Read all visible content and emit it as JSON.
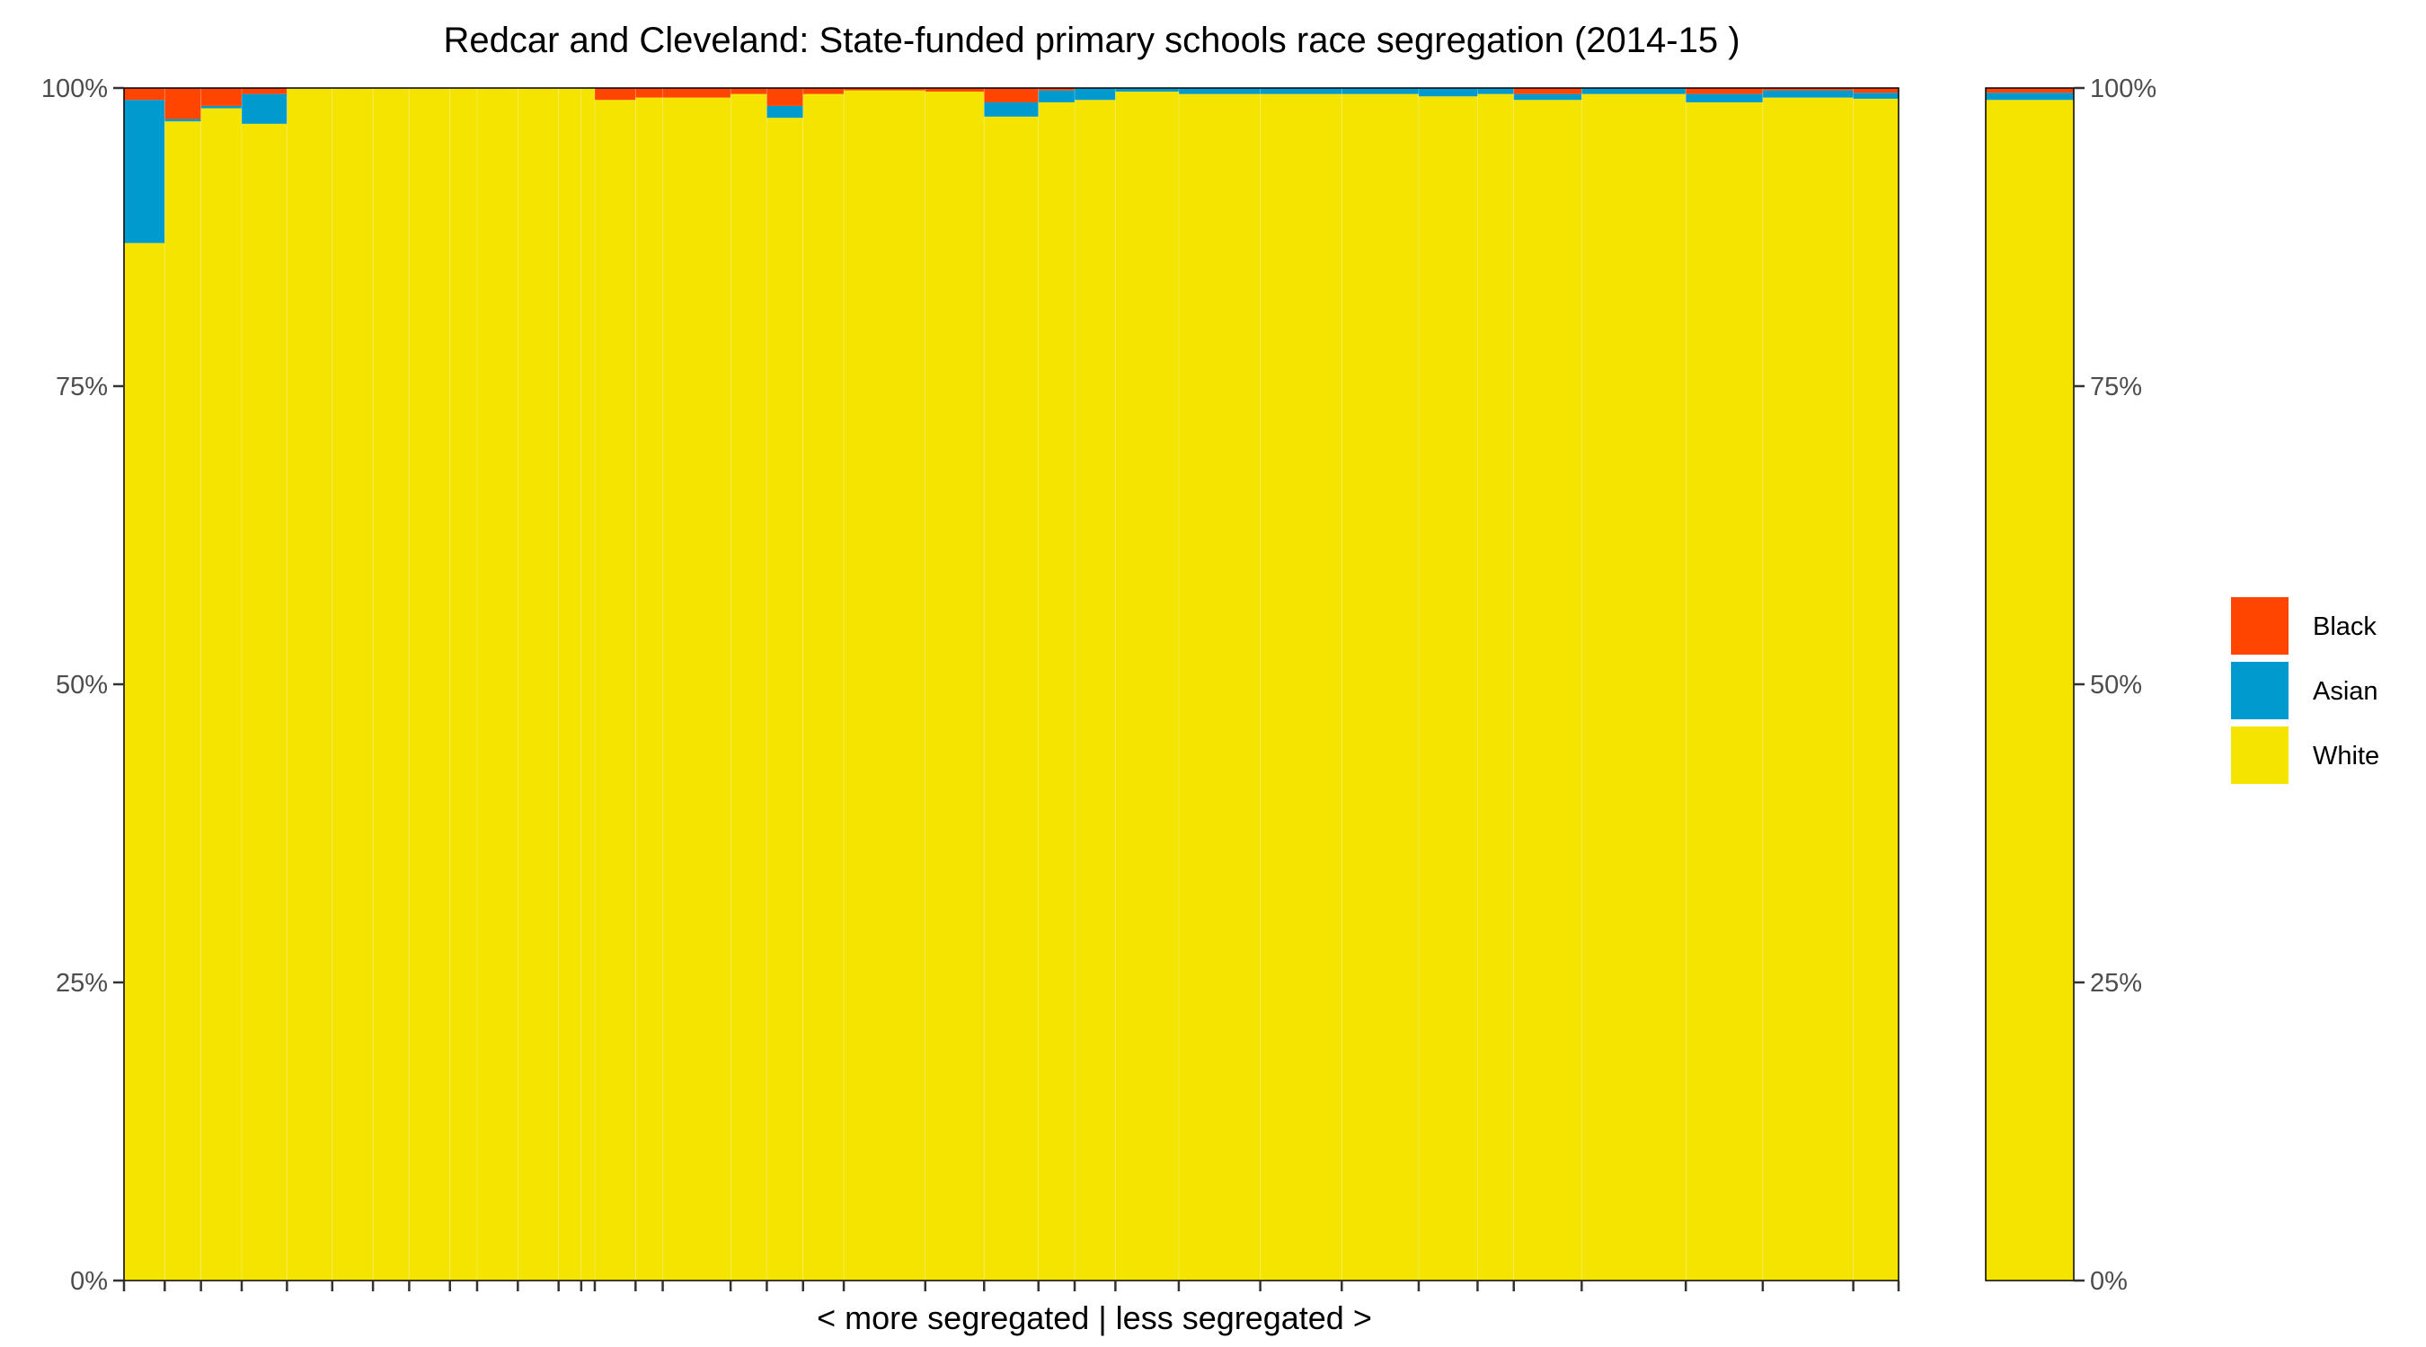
{
  "chart_data": {
    "type": "bar",
    "stacked": true,
    "title": "Redcar and Cleveland: State-funded primary schools race segregation (2014-15 )",
    "xlabel": "< more segregated | less segregated >",
    "ylabel": "",
    "ylim": [
      0,
      100
    ],
    "yticks": [
      "0%",
      "25%",
      "50%",
      "75%",
      "100%"
    ],
    "ytick_values": [
      0,
      25,
      50,
      75,
      100
    ],
    "colors": {
      "Black": "#ff4500",
      "Asian": "#009ace",
      "White": "#f5e300",
      "Other": "#ffffff"
    },
    "legend": {
      "position": "right",
      "entries": [
        "Black",
        "Asian",
        "White"
      ]
    },
    "schools": [
      {
        "w": 0.9,
        "White": 87.0,
        "Asian": 12.0,
        "Black": 1.0
      },
      {
        "w": 0.8,
        "White": 97.2,
        "Asian": 0.2,
        "Black": 2.6
      },
      {
        "w": 0.9,
        "White": 98.3,
        "Asian": 0.2,
        "Black": 1.5
      },
      {
        "w": 1.0,
        "White": 97.0,
        "Asian": 2.5,
        "Black": 0.5
      },
      {
        "w": 1.0,
        "White": 100,
        "Asian": 0,
        "Black": 0
      },
      {
        "w": 0.9,
        "White": 100,
        "Asian": 0,
        "Black": 0
      },
      {
        "w": 0.8,
        "White": 100,
        "Asian": 0,
        "Black": 0
      },
      {
        "w": 0.9,
        "White": 100,
        "Asian": 0,
        "Black": 0
      },
      {
        "w": 0.6,
        "White": 100,
        "Asian": 0,
        "Black": 0
      },
      {
        "w": 0.9,
        "White": 100,
        "Asian": 0,
        "Black": 0
      },
      {
        "w": 0.9,
        "White": 100,
        "Asian": 0,
        "Black": 0
      },
      {
        "w": 0.5,
        "White": 100,
        "Asian": 0,
        "Black": 0
      },
      {
        "w": 0.3,
        "White": 100,
        "Asian": 0,
        "Black": 0
      },
      {
        "w": 0.9,
        "White": 99.0,
        "Asian": 0,
        "Black": 1.0
      },
      {
        "w": 0.6,
        "White": 99.2,
        "Asian": 0,
        "Black": 0.8
      },
      {
        "w": 1.5,
        "White": 99.2,
        "Asian": 0,
        "Black": 0.8
      },
      {
        "w": 0.8,
        "White": 99.5,
        "Asian": 0,
        "Black": 0.5
      },
      {
        "w": 0.8,
        "White": 97.5,
        "Asian": 1.0,
        "Black": 1.5
      },
      {
        "w": 0.9,
        "White": 99.5,
        "Asian": 0,
        "Black": 0.5
      },
      {
        "w": 1.8,
        "White": 99.8,
        "Asian": 0,
        "Black": 0.2
      },
      {
        "w": 1.3,
        "White": 99.7,
        "Asian": 0,
        "Black": 0.3
      },
      {
        "w": 1.2,
        "White": 97.6,
        "Asian": 1.2,
        "Black": 1.2
      },
      {
        "w": 0.8,
        "White": 98.8,
        "Asian": 1.0,
        "Black": 0.2
      },
      {
        "w": 0.9,
        "White": 99.0,
        "Asian": 1.0,
        "Black": 0
      },
      {
        "w": 1.4,
        "White": 99.7,
        "Asian": 0.3,
        "Black": 0
      },
      {
        "w": 1.8,
        "White": 99.5,
        "Asian": 0.5,
        "Black": 0
      },
      {
        "w": 1.8,
        "White": 99.5,
        "Asian": 0.5,
        "Black": 0
      },
      {
        "w": 1.7,
        "White": 99.5,
        "Asian": 0.5,
        "Black": 0
      },
      {
        "w": 1.3,
        "White": 99.3,
        "Asian": 0.7,
        "Black": 0
      },
      {
        "w": 0.8,
        "White": 99.5,
        "Asian": 0.5,
        "Black": 0
      },
      {
        "w": 1.5,
        "White": 99.0,
        "Asian": 0.5,
        "Black": 0.5
      },
      {
        "w": 2.3,
        "White": 99.5,
        "Asian": 0.5,
        "Black": 0
      },
      {
        "w": 1.7,
        "White": 98.8,
        "Asian": 0.7,
        "Black": 0.5
      },
      {
        "w": 2.0,
        "White": 99.2,
        "Asian": 0.6,
        "Black": 0.2
      },
      {
        "w": 1.0,
        "White": 99.1,
        "Asian": 0.5,
        "Black": 0.4
      }
    ],
    "total": {
      "label": "",
      "White": 99.0,
      "Asian": 0.6,
      "Black": 0.4
    }
  }
}
